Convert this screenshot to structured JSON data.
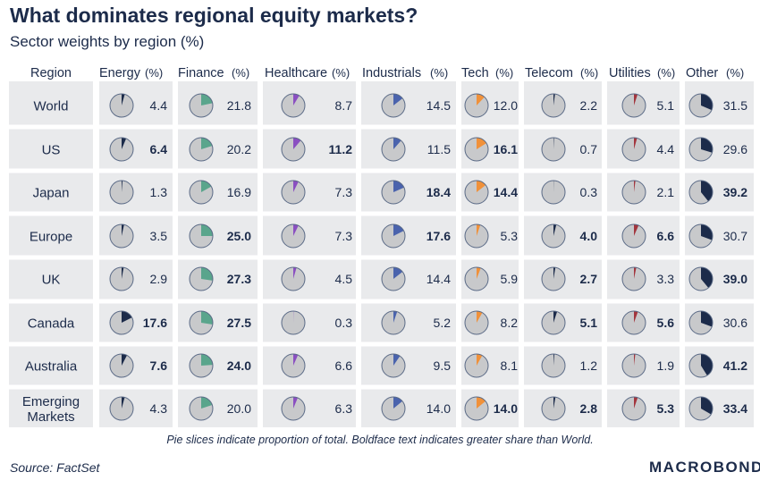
{
  "title": "What dominates regional equity markets?",
  "subtitle": "Sector weights by region (%)",
  "footnote": "Pie slices indicate proportion of total. Boldface text indicates greater share than World.",
  "source": "Source: FactSet",
  "brand": "MACROBOND",
  "colors": {
    "text": "#1c2b4a",
    "band": "#e9eaec",
    "pie_base": "#c8c9cb",
    "pie_border": "#5a6a86",
    "sectors": [
      "#1c2b4a",
      "#5aa58c",
      "#8a4fc1",
      "#4a63ad",
      "#f0913a",
      "#1c2b4a",
      "#a3363e",
      "#1c2b4a"
    ]
  },
  "chart_data": {
    "type": "table",
    "region_header": "Region",
    "column_headers": [
      {
        "name": "Energy",
        "unit": "(%)"
      },
      {
        "name": "Finance",
        "unit": "(%)"
      },
      {
        "name": "Healthcare",
        "unit": "(%)"
      },
      {
        "name": "Industrials",
        "unit": "(%)"
      },
      {
        "name": "Tech",
        "unit": "(%)"
      },
      {
        "name": "Telecom",
        "unit": "(%)"
      },
      {
        "name": "Utilities",
        "unit": "(%)"
      },
      {
        "name": "Other",
        "unit": "(%)"
      }
    ],
    "rows": [
      {
        "region": [
          "World"
        ],
        "values": [
          "4.4",
          "21.8",
          "8.7",
          "14.5",
          "12.0",
          "2.2",
          "5.1",
          "31.5"
        ],
        "bold": [
          false,
          false,
          false,
          false,
          false,
          false,
          false,
          false
        ]
      },
      {
        "region": [
          "US"
        ],
        "values": [
          "6.4",
          "20.2",
          "11.2",
          "11.5",
          "16.1",
          "0.7",
          "4.4",
          "29.6"
        ],
        "bold": [
          true,
          false,
          true,
          false,
          true,
          false,
          false,
          false
        ]
      },
      {
        "region": [
          "Japan"
        ],
        "values": [
          "1.3",
          "16.9",
          "7.3",
          "18.4",
          "14.4",
          "0.3",
          "2.1",
          "39.2"
        ],
        "bold": [
          false,
          false,
          false,
          true,
          true,
          false,
          false,
          true
        ]
      },
      {
        "region": [
          "Europe"
        ],
        "values": [
          "3.5",
          "25.0",
          "7.3",
          "17.6",
          "5.3",
          "4.0",
          "6.6",
          "30.7"
        ],
        "bold": [
          false,
          true,
          false,
          true,
          false,
          true,
          true,
          false
        ]
      },
      {
        "region": [
          "UK"
        ],
        "values": [
          "2.9",
          "27.3",
          "4.5",
          "14.4",
          "5.9",
          "2.7",
          "3.3",
          "39.0"
        ],
        "bold": [
          false,
          true,
          false,
          false,
          false,
          true,
          false,
          true
        ]
      },
      {
        "region": [
          "Canada"
        ],
        "values": [
          "17.6",
          "27.5",
          "0.3",
          "5.2",
          "8.2",
          "5.1",
          "5.6",
          "30.6"
        ],
        "bold": [
          true,
          true,
          false,
          false,
          false,
          true,
          true,
          false
        ]
      },
      {
        "region": [
          "Australia"
        ],
        "values": [
          "7.6",
          "24.0",
          "6.6",
          "9.5",
          "8.1",
          "1.2",
          "1.9",
          "41.2"
        ],
        "bold": [
          true,
          true,
          false,
          false,
          false,
          false,
          false,
          true
        ]
      },
      {
        "region": [
          "Emerging",
          "Markets"
        ],
        "values": [
          "4.3",
          "20.0",
          "6.3",
          "14.0",
          "14.0",
          "2.8",
          "5.3",
          "33.4"
        ],
        "bold": [
          false,
          false,
          false,
          false,
          true,
          true,
          true,
          true
        ]
      }
    ]
  }
}
